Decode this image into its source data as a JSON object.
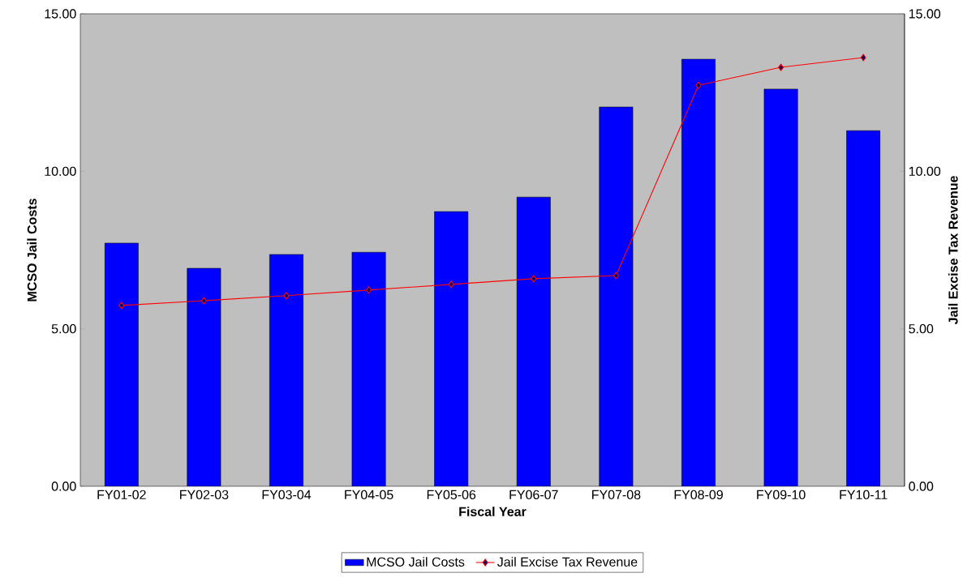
{
  "chart_data": {
    "type": "bar",
    "xlabel": "Fiscal Year",
    "ylabel": "MCSO Jail Costs",
    "y2label": "Jail Excise Tax Revenue",
    "categories": [
      "FY01-02",
      "FY02-03",
      "FY03-04",
      "FY04-05",
      "FY05-06",
      "FY06-07",
      "FY07-08",
      "FY08-09",
      "FY09-10",
      "FY10-11"
    ],
    "series": [
      {
        "name": "MCSO Jail Costs",
        "color": "#0000ff",
        "values": [
          7.72,
          6.92,
          7.36,
          7.43,
          8.72,
          9.18,
          12.04,
          13.56,
          12.61,
          11.29
        ]
      },
      {
        "name": "Jail Excise Tax Revenue",
        "type": "line",
        "axis": "y2",
        "color": "#ff0000",
        "values": [
          5.74,
          5.89,
          6.05,
          6.23,
          6.41,
          6.59,
          6.69,
          12.73,
          13.3,
          13.61
        ]
      }
    ],
    "marker": "diamond",
    "legend": "bottom",
    "grid": false,
    "ylim": [
      0,
      15
    ],
    "yticks": [
      {
        "value": 0,
        "label": "0.00"
      },
      {
        "value": 5,
        "label": "5.00"
      },
      {
        "value": 10,
        "label": "10.00"
      },
      {
        "value": 15,
        "label": "15.00"
      }
    ],
    "y2lim": [
      0,
      15
    ],
    "y2ticks": [
      {
        "value": 0,
        "label": "0.00"
      },
      {
        "value": 5,
        "label": "5.00"
      },
      {
        "value": 10,
        "label": "10.00"
      },
      {
        "value": 15,
        "label": "15.00"
      }
    ]
  }
}
